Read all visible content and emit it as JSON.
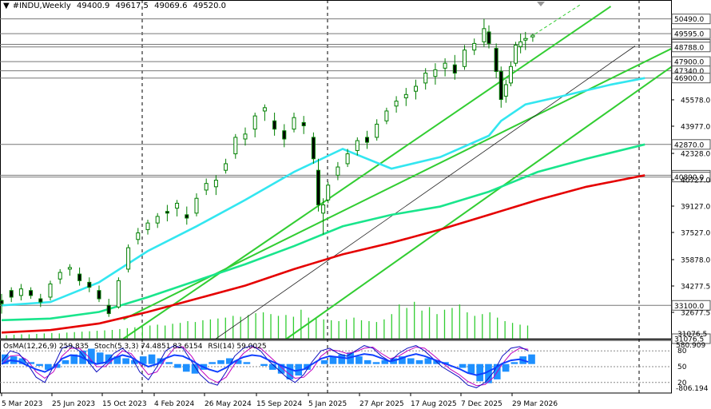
{
  "header": {
    "symbol": "#INDU,Weekly",
    "open": "49400.9",
    "high": "49617.5",
    "low": "49069.6",
    "close": "49520.0"
  },
  "indicator_header": {
    "osma": "OsMA(12,26,9) 259.835",
    "stoch": "Stoch(5,3,3) 74.4851 83.6154",
    "rsi": "RSI(14) 59.0025"
  },
  "colors": {
    "ma_cyan": "#33e6f0",
    "ma_green": "#19e58c",
    "ma_red": "#e50000",
    "channel": "#32cd32",
    "candle": "#008000",
    "volume": "#32cd32",
    "histogram": "#1e90ff",
    "stoch_main": "#1010c0",
    "stoch_signal": "#c000c0",
    "rsi": "#1040ff"
  },
  "chart_data": {
    "type": "candlestick",
    "title": "#INDU,Weekly",
    "x_tick_labels": [
      "5 Mar 2023",
      "25 Jun 2023",
      "15 Oct 2023",
      "4 Feb 2024",
      "26 May 2024",
      "15 Sep 2024",
      "5 Jan 2025",
      "27 Apr 2025",
      "17 Aug 2025",
      "7 Dec 2025",
      "29 Mar 2026"
    ],
    "price_axis_ticks": [
      32677.5,
      34277.5,
      35878.0,
      37527.0,
      39127.0,
      40727.0,
      42328.0,
      43977.0,
      45578.0
    ],
    "price_levels": [
      "50490.0",
      "49595.0",
      "48945.0",
      "48788.0",
      "47900.0",
      "47340.0",
      "46900.0",
      "42870.0",
      "41000.0",
      "40890.0",
      "33100.0",
      "31076.5"
    ],
    "ylim": [
      31076.5,
      51250
    ],
    "moving_averages": [
      {
        "color": "cyan",
        "x": [
          0,
          20,
          40,
          60,
          80,
          100,
          120,
          140,
          160,
          180,
          200,
          205,
          215,
          230,
          250,
          264
        ],
        "y": [
          33100,
          33300,
          34500,
          36400,
          37900,
          39500,
          41200,
          42600,
          41400,
          42100,
          43400,
          44300,
          45300,
          45800,
          46500,
          46900
        ]
      },
      {
        "color": "green",
        "x": [
          0,
          20,
          40,
          60,
          80,
          100,
          120,
          140,
          160,
          180,
          200,
          220,
          240,
          264
        ],
        "y": [
          32200,
          32300,
          32700,
          33600,
          34600,
          35600,
          36700,
          37900,
          38600,
          39100,
          40000,
          41200,
          42000,
          42870
        ]
      },
      {
        "color": "red",
        "x": [
          0,
          20,
          40,
          60,
          80,
          100,
          120,
          140,
          160,
          180,
          200,
          220,
          240,
          264
        ],
        "y": [
          31450,
          31600,
          32000,
          32700,
          33500,
          34300,
          35300,
          36200,
          36900,
          37700,
          38600,
          39500,
          40300,
          41000
        ]
      }
    ],
    "channel_lines": [
      {
        "x": [
          50,
          250
        ],
        "y": [
          31076.5,
          51250
        ]
      },
      {
        "x": [
          50,
          310
        ],
        "y": [
          32250,
          51250
        ]
      },
      {
        "x": [
          117,
          310
        ],
        "y": [
          31076.5,
          51250
        ]
      },
      {
        "x": [
          88,
          260
        ],
        "y": [
          31076.5,
          48850
        ]
      }
    ],
    "candles_ohlc": [
      [
        0,
        33400,
        33800,
        32600,
        33200
      ],
      [
        4,
        34000,
        34200,
        33300,
        33600
      ],
      [
        8,
        33700,
        34400,
        33400,
        34100
      ],
      [
        12,
        34000,
        34200,
        33500,
        33700
      ],
      [
        16,
        33500,
        33800,
        33000,
        33300
      ],
      [
        20,
        33600,
        34600,
        33400,
        34400
      ],
      [
        24,
        34700,
        35300,
        34400,
        35100
      ],
      [
        28,
        35300,
        35600,
        34900,
        35400
      ],
      [
        32,
        35000,
        35400,
        34300,
        34600
      ],
      [
        36,
        34500,
        34800,
        33900,
        34200
      ],
      [
        40,
        34000,
        34300,
        33300,
        33500
      ],
      [
        44,
        33100,
        33500,
        32400,
        32600
      ],
      [
        48,
        33000,
        34800,
        32900,
        34600
      ],
      [
        52,
        35300,
        36800,
        35100,
        36600
      ],
      [
        56,
        37100,
        37800,
        36800,
        37500
      ],
      [
        60,
        37700,
        38300,
        37400,
        38100
      ],
      [
        64,
        38100,
        38700,
        37800,
        38500
      ],
      [
        68,
        38800,
        39200,
        38200,
        38700
      ],
      [
        72,
        39000,
        39500,
        38500,
        39300
      ],
      [
        76,
        38600,
        39100,
        38000,
        38400
      ],
      [
        80,
        38700,
        39900,
        38500,
        39600
      ],
      [
        84,
        40100,
        40800,
        39800,
        40500
      ],
      [
        88,
        40300,
        41000,
        39800,
        40700
      ],
      [
        92,
        41300,
        42000,
        41100,
        41700
      ],
      [
        96,
        42300,
        43500,
        42000,
        43300
      ],
      [
        100,
        43200,
        43900,
        42800,
        43500
      ],
      [
        104,
        43800,
        44800,
        43300,
        44600
      ],
      [
        108,
        44900,
        45300,
        44300,
        45100
      ],
      [
        112,
        44300,
        44800,
        43400,
        43800
      ],
      [
        116,
        43700,
        44100,
        42700,
        43200
      ],
      [
        120,
        43800,
        44800,
        43600,
        44500
      ],
      [
        124,
        44200,
        44600,
        43500,
        44000
      ],
      [
        128,
        43300,
        43600,
        41700,
        42000
      ],
      [
        130,
        41300,
        42000,
        38800,
        39200
      ],
      [
        132,
        38700,
        39600,
        37400,
        39200
      ],
      [
        134,
        39500,
        40600,
        39300,
        40400
      ],
      [
        138,
        41000,
        41800,
        40700,
        41500
      ],
      [
        142,
        41700,
        42600,
        41500,
        42300
      ],
      [
        146,
        42500,
        43300,
        42200,
        43100
      ],
      [
        150,
        43300,
        43700,
        42600,
        43000
      ],
      [
        154,
        43300,
        44400,
        43100,
        44100
      ],
      [
        158,
        44300,
        45100,
        44100,
        44900
      ],
      [
        162,
        45200,
        45800,
        44800,
        45500
      ],
      [
        166,
        45700,
        46300,
        45200,
        45900
      ],
      [
        170,
        46100,
        46800,
        45600,
        46400
      ],
      [
        174,
        46600,
        47500,
        46200,
        47200
      ],
      [
        178,
        47000,
        47800,
        46500,
        47400
      ],
      [
        182,
        47500,
        48100,
        47000,
        47800
      ],
      [
        186,
        47700,
        48300,
        46800,
        47200
      ],
      [
        190,
        47600,
        48900,
        47400,
        48600
      ],
      [
        194,
        48600,
        49300,
        48300,
        49000
      ],
      [
        198,
        49100,
        50490,
        48800,
        49900
      ],
      [
        200,
        49700,
        50100,
        48700,
        49000
      ],
      [
        203,
        48700,
        49000,
        46900,
        47300
      ],
      [
        205,
        47300,
        47600,
        45100,
        45600
      ],
      [
        207,
        45800,
        46800,
        45400,
        46500
      ],
      [
        209,
        46600,
        47900,
        46400,
        47600
      ],
      [
        211,
        47800,
        49100,
        47600,
        48900
      ],
      [
        213,
        48800,
        49600,
        48400,
        49100
      ],
      [
        215,
        49200,
        49700,
        48600,
        49300
      ],
      [
        218,
        49400,
        49600,
        49100,
        49500
      ]
    ],
    "volume_values": [
      0.4,
      0.45,
      0.5,
      0.5,
      0.55,
      0.6,
      0.65,
      0.6,
      0.7,
      0.75,
      0.8,
      0.85,
      0.9,
      0.95,
      1.0,
      1.1,
      1.2,
      1.3,
      1.4,
      1.5,
      1.6,
      1.5,
      1.7,
      1.8,
      2.0,
      1.9,
      2.1,
      2.2,
      2.3,
      2.4,
      2.6,
      2.5,
      2.7,
      2.9,
      3.0,
      2.8,
      2.6,
      2.7,
      2.5,
      3.3,
      2.4,
      2.3,
      2.2,
      2.1,
      2.0,
      2.2,
      2.4,
      2.1,
      2.0,
      1.9,
      2.2,
      2.8,
      3.9,
      3.5,
      4.2,
      3.2,
      3.6,
      2.8,
      3.3,
      3.5,
      3.9,
      3.0,
      2.6,
      2.8,
      3.0,
      2.4,
      2.0,
      1.8,
      1.6,
      1.5
    ],
    "osma_histogram": [
      0.5,
      0.4,
      0.3,
      0.1,
      -0.1,
      -0.3,
      -0.2,
      0.2,
      0.5,
      0.7,
      0.8,
      0.6,
      0.5,
      0.4,
      0.3,
      0.2,
      0.4,
      0.5,
      0.3,
      0.1,
      -0.2,
      -0.4,
      -0.5,
      -0.3,
      0.1,
      0.2,
      0.3,
      0.2,
      0.1,
      0.0,
      -0.1,
      -0.3,
      -0.5,
      -0.8,
      -0.6,
      -0.3,
      0.0,
      0.2,
      0.4,
      0.5,
      0.6,
      0.4,
      0.2,
      0.1,
      0.2,
      0.3,
      0.4,
      0.3,
      0.2,
      0.3,
      0.2,
      0.1,
      0.0,
      -0.2,
      -0.5,
      -0.9,
      -1.0,
      -0.8,
      -0.4,
      0.1,
      0.4,
      0.5
    ],
    "stoch_main": [
      60,
      80,
      75,
      55,
      30,
      20,
      50,
      85,
      90,
      80,
      60,
      40,
      55,
      75,
      85,
      70,
      40,
      25,
      50,
      80,
      90,
      85,
      60,
      35,
      20,
      15,
      40,
      70,
      85,
      90,
      80,
      60,
      45,
      30,
      20,
      35,
      60,
      80,
      85,
      75,
      70,
      80,
      90,
      85,
      70,
      60,
      75,
      85,
      90,
      80,
      65,
      50,
      40,
      30,
      15,
      10,
      20,
      40,
      70,
      85,
      88,
      80
    ],
    "stoch_signal": [
      55,
      70,
      72,
      62,
      40,
      28,
      40,
      70,
      85,
      85,
      70,
      50,
      50,
      65,
      80,
      75,
      55,
      35,
      40,
      65,
      85,
      88,
      70,
      45,
      28,
      20,
      30,
      55,
      75,
      87,
      85,
      70,
      55,
      40,
      28,
      30,
      45,
      70,
      82,
      80,
      75,
      78,
      85,
      87,
      75,
      65,
      70,
      80,
      87,
      85,
      72,
      58,
      45,
      35,
      22,
      14,
      16,
      30,
      55,
      75,
      85,
      83
    ],
    "rsi": [
      55,
      62,
      60,
      52,
      45,
      40,
      48,
      65,
      72,
      70,
      62,
      55,
      58,
      66,
      72,
      68,
      58,
      50,
      55,
      66,
      72,
      70,
      62,
      52,
      45,
      40,
      48,
      60,
      68,
      72,
      70,
      62,
      55,
      48,
      42,
      45,
      55,
      65,
      70,
      68,
      66,
      70,
      74,
      72,
      66,
      60,
      64,
      70,
      74,
      70,
      64,
      58,
      52,
      46,
      38,
      34,
      38,
      46,
      56,
      62,
      64,
      59
    ]
  }
}
